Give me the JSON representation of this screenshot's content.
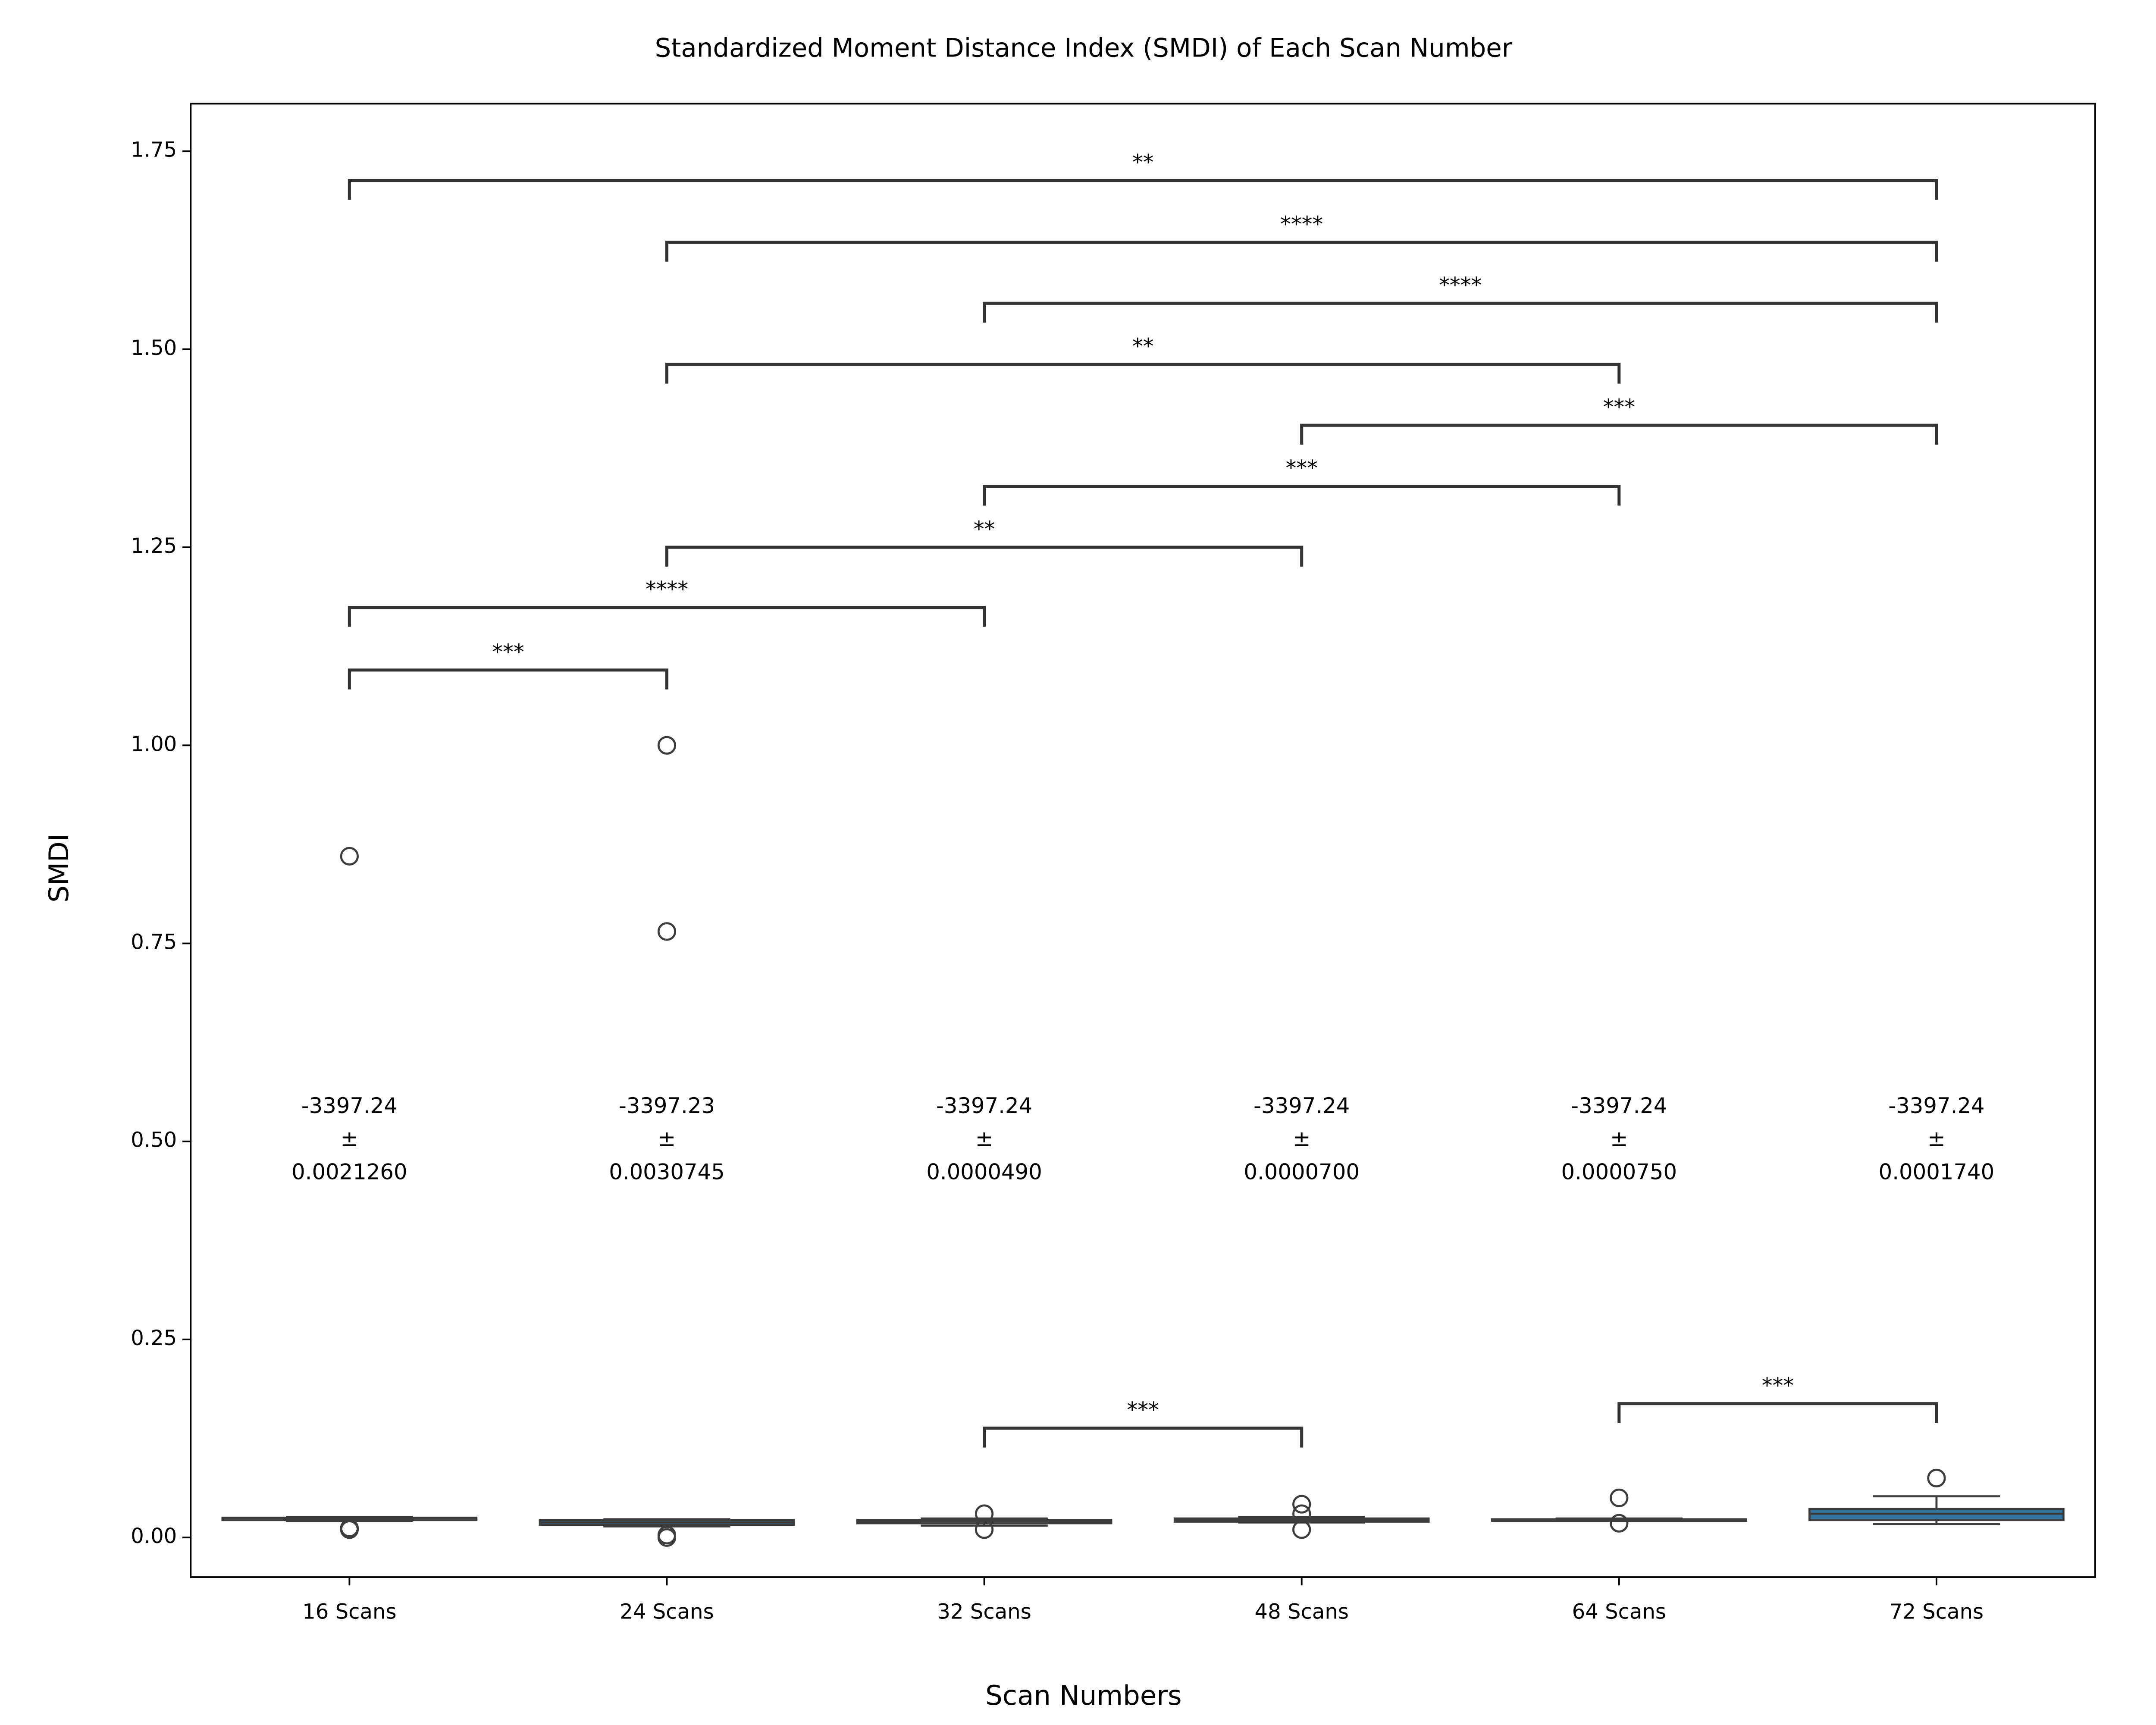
{
  "chart_data": {
    "type": "box",
    "title": "Standardized Moment Distance Index (SMDI) of Each Scan Number",
    "x_label": "Scan Numbers",
    "y_label": "SMDI",
    "categories": [
      "16 Scans",
      "24 Scans",
      "32 Scans",
      "48 Scans",
      "64 Scans",
      "72 Scans"
    ],
    "color": "#3274a1",
    "edge_color": "#3d3d3d",
    "boxes": [
      {
        "whisker_low": 0.021,
        "q1": 0.022,
        "median": 0.024,
        "q3": 0.025,
        "whisker_high": 0.026,
        "outliers": [
          0.86,
          0.012,
          0.01
        ]
      },
      {
        "whisker_low": 0.014,
        "q1": 0.016,
        "median": 0.019,
        "q3": 0.022,
        "whisker_high": 0.023,
        "outliers": [
          1.0,
          0.765,
          0.003,
          0.0
        ]
      },
      {
        "whisker_low": 0.015,
        "q1": 0.018,
        "median": 0.02,
        "q3": 0.022,
        "whisker_high": 0.024,
        "outliers": [
          0.03,
          0.01
        ]
      },
      {
        "whisker_low": 0.019,
        "q1": 0.02,
        "median": 0.022,
        "q3": 0.024,
        "whisker_high": 0.026,
        "outliers": [
          0.042,
          0.03,
          0.01
        ]
      },
      {
        "whisker_low": 0.021,
        "q1": 0.021,
        "median": 0.022,
        "q3": 0.023,
        "whisker_high": 0.024,
        "outliers": [
          0.05,
          0.018
        ]
      },
      {
        "whisker_low": 0.017,
        "q1": 0.022,
        "median": 0.03,
        "q3": 0.036,
        "whisker_high": 0.052,
        "outliers": [
          0.075
        ]
      }
    ],
    "annotations": [
      [
        "-3397.24",
        "±",
        "0.0021260"
      ],
      [
        "-3397.23",
        "±",
        "0.0030745"
      ],
      [
        "-3397.24",
        "±",
        "0.0000490"
      ],
      [
        "-3397.24",
        "±",
        "0.0000700"
      ],
      [
        "-3397.24",
        "±",
        "0.0000750"
      ],
      [
        "-3397.24",
        "±",
        "0.0001740"
      ]
    ],
    "brackets": [
      {
        "pair": [
          "16 Scans",
          "72 Scans"
        ],
        "y": 1.713,
        "label": "**"
      },
      {
        "pair": [
          "24 Scans",
          "72 Scans"
        ],
        "y": 1.635,
        "label": "****"
      },
      {
        "pair": [
          "32 Scans",
          "72 Scans"
        ],
        "y": 1.558,
        "label": "****"
      },
      {
        "pair": [
          "24 Scans",
          "64 Scans"
        ],
        "y": 1.481,
        "label": "**"
      },
      {
        "pair": [
          "48 Scans",
          "72 Scans"
        ],
        "y": 1.404,
        "label": "***"
      },
      {
        "pair": [
          "32 Scans",
          "64 Scans"
        ],
        "y": 1.327,
        "label": "***"
      },
      {
        "pair": [
          "24 Scans",
          "48 Scans"
        ],
        "y": 1.25,
        "label": "**"
      },
      {
        "pair": [
          "16 Scans",
          "32 Scans"
        ],
        "y": 1.174,
        "label": "****"
      },
      {
        "pair": [
          "16 Scans",
          "24 Scans"
        ],
        "y": 1.095,
        "label": "***"
      },
      {
        "pair": [
          "32 Scans",
          "48 Scans"
        ],
        "y": 0.138,
        "label": "***"
      },
      {
        "pair": [
          "64 Scans",
          "72 Scans"
        ],
        "y": 0.169,
        "label": "***"
      }
    ],
    "ylim": [
      -0.05,
      1.81
    ],
    "yticks": [
      {
        "value": 0,
        "label": "0.00"
      },
      {
        "value": 0.25,
        "label": "0.25"
      },
      {
        "value": 0.5,
        "label": "0.50"
      },
      {
        "value": 0.75,
        "label": "0.75"
      },
      {
        "value": 1,
        "label": "1.00"
      },
      {
        "value": 1.25,
        "label": "1.25"
      },
      {
        "value": 1.5,
        "label": "1.50"
      },
      {
        "value": 1.75,
        "label": "1.75"
      }
    ]
  }
}
